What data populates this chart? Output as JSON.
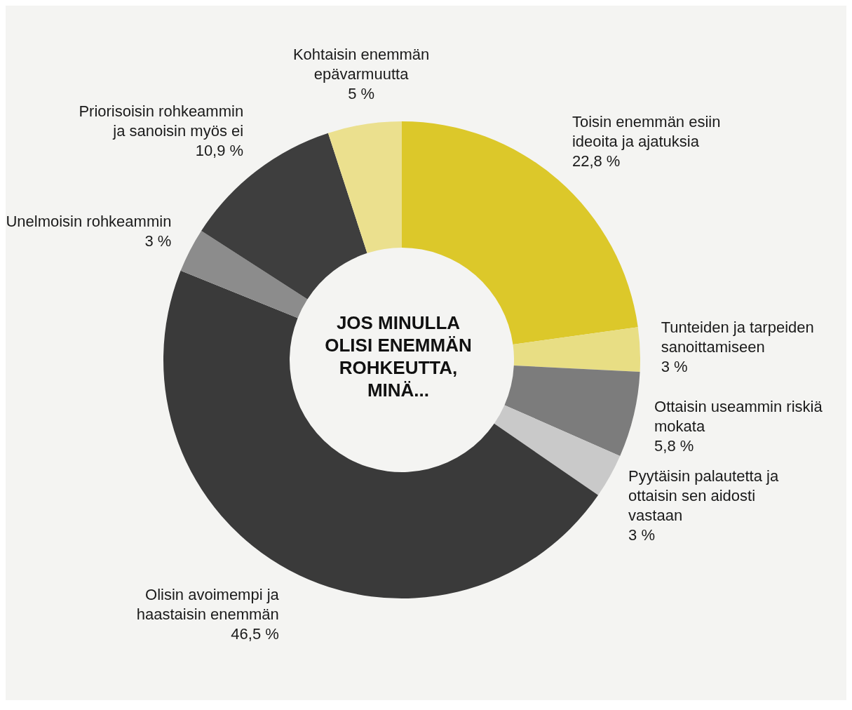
{
  "chart_data": {
    "type": "donut",
    "title": "JOS MINULLA OLISI ENEMMÄN ROHKEUTTA, MINÄ...",
    "categories": [
      "Toisin enemmän esiin ideoita ja ajatuksia",
      "Tunteiden ja tarpeiden sanoittamiseen",
      "Ottaisin useammin riskiä mokata",
      "Pyytäisin palautetta ja ottaisin sen aidosti vastaan",
      "Olisin avoimempi ja haastaisin enemmän",
      "Unelmoisin rohkeammin",
      "Priorisoisin rohkeammin ja sanoisin myös ei",
      "Kohtaisin enemmän epävarmuutta"
    ],
    "values": [
      22.8,
      3,
      5.8,
      3,
      46.5,
      3,
      10.9,
      5
    ],
    "value_labels": [
      "22,8 %",
      "3 %",
      "5,8 %",
      "3 %",
      "46,5 %",
      "3 %",
      "10,9 %",
      "5 %"
    ],
    "colors": [
      "#dcc82a",
      "#e8de84",
      "#7c7c7c",
      "#c9c9c9",
      "#3a3a3a",
      "#8c8c8c",
      "#3e3e3e",
      "#ebe08e"
    ]
  }
}
